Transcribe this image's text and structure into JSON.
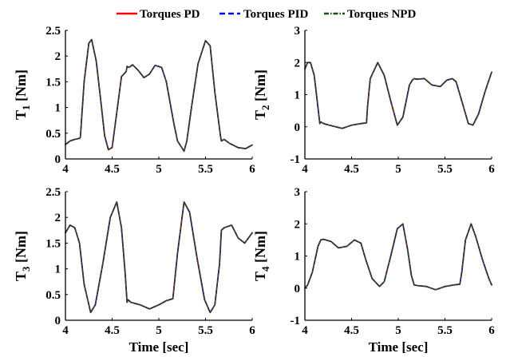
{
  "legend": {
    "placement": "top-center",
    "entries": [
      {
        "label": "Torques PD",
        "color": "#ff0000",
        "dash": "solid"
      },
      {
        "label": "Torques PID",
        "color": "#0000ff",
        "dash": "dashed"
      },
      {
        "label": "Torques NPD",
        "color": "#1a4d1a",
        "dash": "dashdot"
      }
    ]
  },
  "chart_data": [
    {
      "type": "line",
      "ylabel_main": "T",
      "ylabel_sub": "1",
      "ylabel_unit": " [Nm]",
      "xlabel": "",
      "xlim": [
        4,
        6
      ],
      "ylim": [
        0,
        2.5
      ],
      "xticks": [
        "4",
        "4.5",
        "5",
        "5.5",
        "6"
      ],
      "yticks": [
        "0",
        "0.5",
        "1",
        "1.5",
        "2",
        "2.5"
      ],
      "grid": false,
      "x": [
        4.0,
        4.05,
        4.1,
        4.15,
        4.16,
        4.2,
        4.25,
        4.28,
        4.33,
        4.38,
        4.42,
        4.46,
        4.5,
        4.55,
        4.6,
        4.65,
        4.66,
        4.68,
        4.72,
        4.78,
        4.84,
        4.9,
        4.96,
        5.03,
        5.08,
        5.13,
        5.16,
        5.2,
        5.27,
        5.3,
        5.35,
        5.42,
        5.5,
        5.55,
        5.6,
        5.66,
        5.67,
        5.7,
        5.76,
        5.85,
        5.93,
        6.0
      ],
      "series": [
        {
          "name": "Torques PD",
          "values": [
            0.28,
            0.35,
            0.38,
            0.4,
            0.42,
            1.5,
            2.25,
            2.32,
            1.9,
            1.1,
            0.45,
            0.18,
            0.22,
            0.9,
            1.6,
            1.7,
            1.8,
            1.78,
            1.83,
            1.72,
            1.58,
            1.65,
            1.82,
            1.78,
            1.5,
            1.0,
            0.7,
            0.35,
            0.15,
            0.35,
            1.0,
            1.85,
            2.3,
            2.2,
            1.3,
            0.45,
            0.35,
            0.38,
            0.3,
            0.22,
            0.2,
            0.27
          ]
        },
        {
          "name": "Torques PID",
          "values": [
            0.28,
            0.35,
            0.38,
            0.4,
            0.42,
            1.5,
            2.25,
            2.32,
            1.9,
            1.1,
            0.45,
            0.18,
            0.22,
            0.9,
            1.6,
            1.7,
            1.8,
            1.78,
            1.83,
            1.72,
            1.58,
            1.65,
            1.82,
            1.78,
            1.5,
            1.0,
            0.7,
            0.35,
            0.15,
            0.35,
            1.0,
            1.85,
            2.3,
            2.2,
            1.3,
            0.45,
            0.35,
            0.38,
            0.3,
            0.22,
            0.2,
            0.27
          ]
        },
        {
          "name": "Torques NPD",
          "values": [
            0.28,
            0.35,
            0.38,
            0.4,
            0.42,
            1.5,
            2.25,
            2.32,
            1.9,
            1.1,
            0.45,
            0.18,
            0.22,
            0.9,
            1.6,
            1.7,
            1.8,
            1.78,
            1.83,
            1.72,
            1.58,
            1.65,
            1.82,
            1.78,
            1.5,
            1.0,
            0.7,
            0.35,
            0.15,
            0.35,
            1.0,
            1.85,
            2.3,
            2.2,
            1.3,
            0.45,
            0.35,
            0.38,
            0.3,
            0.22,
            0.2,
            0.27
          ]
        }
      ]
    },
    {
      "type": "line",
      "ylabel_main": "T",
      "ylabel_sub": "2",
      "ylabel_unit": " [Nm]",
      "xlabel": "",
      "xlim": [
        4,
        6
      ],
      "ylim": [
        -1,
        3
      ],
      "xticks": [
        "4",
        "4.5",
        "5",
        "5.5",
        "6"
      ],
      "yticks": [
        "-1",
        "0",
        "1",
        "2",
        "3"
      ],
      "grid": false,
      "x": [
        4.0,
        4.03,
        4.06,
        4.1,
        4.14,
        4.16,
        4.17,
        4.2,
        4.3,
        4.4,
        4.5,
        4.6,
        4.66,
        4.67,
        4.7,
        4.78,
        4.85,
        4.92,
        4.99,
        5.05,
        5.12,
        5.15,
        5.17,
        5.2,
        5.28,
        5.36,
        5.45,
        5.52,
        5.58,
        5.62,
        5.68,
        5.75,
        5.8,
        5.86,
        5.93,
        6.0
      ],
      "series": [
        {
          "name": "Torques PD",
          "values": [
            1.8,
            2.0,
            2.0,
            1.6,
            0.6,
            0.1,
            0.15,
            0.1,
            0.02,
            -0.05,
            0.05,
            0.1,
            0.12,
            0.6,
            1.5,
            2.0,
            1.6,
            0.8,
            0.05,
            0.3,
            1.3,
            1.45,
            1.5,
            1.48,
            1.5,
            1.3,
            1.25,
            1.45,
            1.5,
            1.4,
            0.8,
            0.1,
            0.05,
            0.4,
            1.1,
            1.7
          ]
        },
        {
          "name": "Torques PID",
          "values": [
            1.8,
            2.0,
            2.0,
            1.6,
            0.6,
            0.1,
            0.15,
            0.1,
            0.02,
            -0.05,
            0.05,
            0.1,
            0.12,
            0.6,
            1.5,
            2.0,
            1.6,
            0.8,
            0.05,
            0.3,
            1.3,
            1.45,
            1.5,
            1.48,
            1.5,
            1.3,
            1.25,
            1.45,
            1.5,
            1.4,
            0.8,
            0.1,
            0.05,
            0.4,
            1.1,
            1.7
          ]
        },
        {
          "name": "Torques NPD",
          "values": [
            1.8,
            2.0,
            2.0,
            1.6,
            0.6,
            0.1,
            0.15,
            0.1,
            0.02,
            -0.05,
            0.05,
            0.1,
            0.12,
            0.6,
            1.5,
            2.0,
            1.6,
            0.8,
            0.05,
            0.3,
            1.3,
            1.45,
            1.5,
            1.48,
            1.5,
            1.3,
            1.25,
            1.45,
            1.5,
            1.4,
            0.8,
            0.1,
            0.05,
            0.4,
            1.1,
            1.7
          ]
        }
      ]
    },
    {
      "type": "line",
      "ylabel_main": "T",
      "ylabel_sub": "3",
      "ylabel_unit": " [Nm]",
      "xlabel": "Time [sec]",
      "xlim": [
        4,
        6
      ],
      "ylim": [
        0,
        2.5
      ],
      "xticks": [
        "4",
        "4.5",
        "5",
        "5.5",
        "6"
      ],
      "yticks": [
        "0",
        "0.5",
        "1",
        "1.5",
        "2",
        "2.5"
      ],
      "grid": false,
      "x": [
        4.0,
        4.05,
        4.1,
        4.15,
        4.2,
        4.27,
        4.32,
        4.4,
        4.48,
        4.55,
        4.6,
        4.64,
        4.66,
        4.67,
        4.7,
        4.8,
        4.9,
        5.0,
        5.08,
        5.15,
        5.2,
        5.27,
        5.33,
        5.41,
        5.49,
        5.55,
        5.6,
        5.65,
        5.67,
        5.7,
        5.78,
        5.85,
        5.92,
        6.0
      ],
      "series": [
        {
          "name": "Torques PD",
          "values": [
            1.7,
            1.85,
            1.8,
            1.5,
            0.7,
            0.15,
            0.3,
            1.1,
            2.0,
            2.3,
            1.8,
            0.9,
            0.35,
            0.4,
            0.35,
            0.3,
            0.22,
            0.3,
            0.38,
            0.42,
            1.3,
            2.3,
            2.1,
            1.2,
            0.4,
            0.15,
            0.3,
            1.1,
            1.75,
            1.8,
            1.85,
            1.6,
            1.5,
            1.7
          ]
        },
        {
          "name": "Torques PID",
          "values": [
            1.7,
            1.85,
            1.8,
            1.5,
            0.7,
            0.15,
            0.3,
            1.1,
            2.0,
            2.3,
            1.8,
            0.9,
            0.35,
            0.4,
            0.35,
            0.3,
            0.22,
            0.3,
            0.38,
            0.42,
            1.3,
            2.3,
            2.1,
            1.2,
            0.4,
            0.15,
            0.3,
            1.1,
            1.75,
            1.8,
            1.85,
            1.6,
            1.5,
            1.7
          ]
        },
        {
          "name": "Torques NPD",
          "values": [
            1.7,
            1.85,
            1.8,
            1.5,
            0.7,
            0.15,
            0.3,
            1.1,
            2.0,
            2.3,
            1.8,
            0.9,
            0.35,
            0.4,
            0.35,
            0.3,
            0.22,
            0.3,
            0.38,
            0.42,
            1.3,
            2.3,
            2.1,
            1.2,
            0.4,
            0.15,
            0.3,
            1.1,
            1.75,
            1.8,
            1.85,
            1.6,
            1.5,
            1.7
          ]
        }
      ]
    },
    {
      "type": "line",
      "ylabel_main": "T",
      "ylabel_sub": "4",
      "ylabel_unit": " [Nm]",
      "xlabel": "Time [sec]",
      "xlim": [
        4,
        6
      ],
      "ylim": [
        -1,
        3
      ],
      "xticks": [
        "4",
        "4.5",
        "5",
        "5.5",
        "6"
      ],
      "yticks": [
        "-1",
        "0",
        "1",
        "2",
        "3"
      ],
      "grid": false,
      "x": [
        4.0,
        4.03,
        4.08,
        4.14,
        4.17,
        4.2,
        4.28,
        4.36,
        4.45,
        4.53,
        4.6,
        4.65,
        4.72,
        4.8,
        4.85,
        4.92,
        4.99,
        5.05,
        5.1,
        5.14,
        5.17,
        5.2,
        5.3,
        5.4,
        5.5,
        5.6,
        5.66,
        5.68,
        5.72,
        5.78,
        5.83,
        5.9,
        5.97,
        6.0
      ],
      "series": [
        {
          "name": "Torques PD",
          "values": [
            0.0,
            0.1,
            0.5,
            1.3,
            1.5,
            1.52,
            1.45,
            1.25,
            1.3,
            1.5,
            1.4,
            0.9,
            0.3,
            0.05,
            0.2,
            1.0,
            1.85,
            2.0,
            1.2,
            0.4,
            0.1,
            0.08,
            0.05,
            -0.05,
            0.05,
            0.1,
            0.12,
            0.5,
            1.5,
            2.0,
            1.6,
            0.9,
            0.3,
            0.1
          ]
        },
        {
          "name": "Torques PID",
          "values": [
            0.0,
            0.1,
            0.5,
            1.3,
            1.5,
            1.52,
            1.45,
            1.25,
            1.3,
            1.5,
            1.4,
            0.9,
            0.3,
            0.05,
            0.2,
            1.0,
            1.85,
            2.0,
            1.2,
            0.4,
            0.1,
            0.08,
            0.05,
            -0.05,
            0.05,
            0.1,
            0.12,
            0.5,
            1.5,
            2.0,
            1.6,
            0.9,
            0.3,
            0.1
          ]
        },
        {
          "name": "Torques NPD",
          "values": [
            0.0,
            0.1,
            0.5,
            1.3,
            1.5,
            1.52,
            1.45,
            1.25,
            1.3,
            1.5,
            1.4,
            0.9,
            0.3,
            0.05,
            0.2,
            1.0,
            1.85,
            2.0,
            1.2,
            0.4,
            0.1,
            0.08,
            0.05,
            -0.05,
            0.05,
            0.1,
            0.12,
            0.5,
            1.5,
            2.0,
            1.6,
            0.9,
            0.3,
            0.1
          ]
        }
      ]
    }
  ]
}
